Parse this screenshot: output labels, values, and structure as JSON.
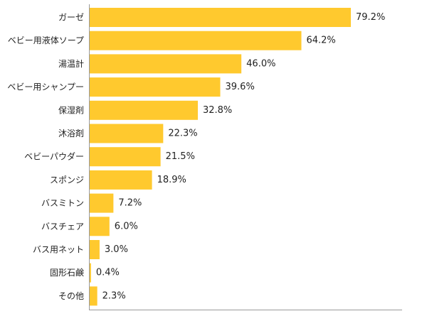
{
  "chart_data": {
    "type": "bar",
    "orientation": "horizontal",
    "title": "",
    "xlabel": "",
    "ylabel": "",
    "xlim": [
      0,
      100
    ],
    "grid": false,
    "legend": "none",
    "bar_color": "#FFC92E",
    "axis_color": "#999999",
    "categories": [
      "ガーゼ",
      "ベビー用液体ソープ",
      "湯温計",
      "ベビー用シャンプー",
      "保湿剤",
      "沐浴剤",
      "ベビーパウダー",
      "スポンジ",
      "バスミトン",
      "バスチェア",
      "バス用ネット",
      "固形石鹸",
      "その他"
    ],
    "values": [
      79.2,
      64.2,
      46.0,
      39.6,
      32.8,
      22.3,
      21.5,
      18.9,
      7.2,
      6.0,
      3.0,
      0.4,
      2.3
    ],
    "value_labels": [
      "79.2%",
      "64.2%",
      "46.0%",
      "39.6%",
      "32.8%",
      "22.3%",
      "21.5%",
      "18.9%",
      "7.2%",
      "6.0%",
      "3.0%",
      "0.4%",
      "2.3%"
    ]
  }
}
